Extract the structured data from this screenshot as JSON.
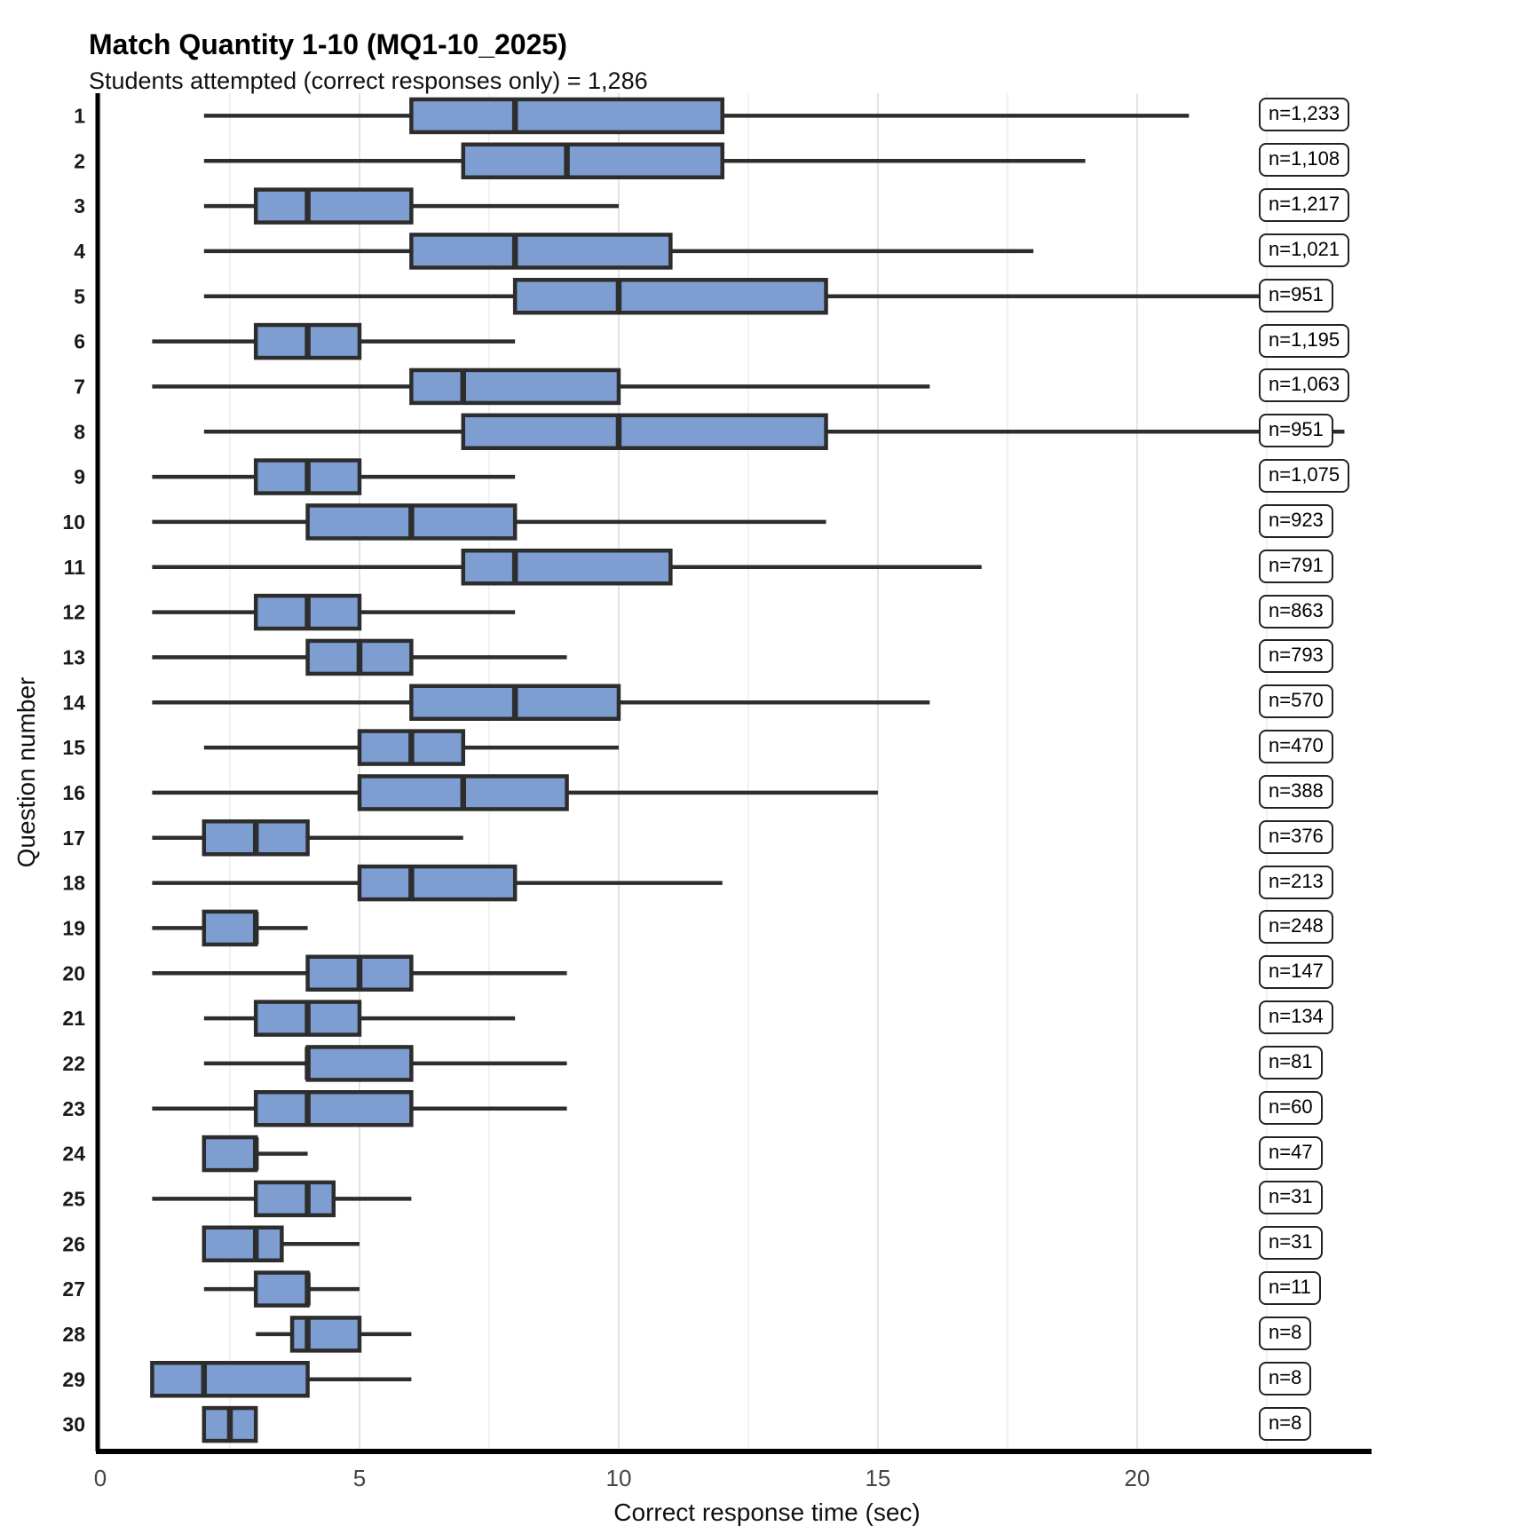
{
  "title": "Match Quantity 1-10 (MQ1-10_2025)",
  "subtitle": "Students attempted (correct responses only) = 1,286",
  "chart_data": {
    "type": "boxplot-horizontal",
    "title": "Match Quantity 1-10 (MQ1-10_2025)",
    "subtitle": "Students attempted (correct responses only) = 1,286",
    "xlabel": "Correct response time (sec)",
    "ylabel": "Question number",
    "xlim": [
      0,
      24.3
    ],
    "x_ticks": [
      0,
      5,
      10,
      15,
      20
    ],
    "x_minor_gridlines": [
      2.5,
      7.5,
      12.5,
      17.5,
      22.5
    ],
    "grid": "vertical-only",
    "legend": "none",
    "box_fill": "#7E9ED2",
    "box_stroke": "#2D2D2D",
    "rows": [
      {
        "question": "1",
        "n_label": "n=1,233",
        "min": 2,
        "q1": 6,
        "median": 8,
        "q3": 12,
        "max": 21
      },
      {
        "question": "2",
        "n_label": "n=1,108",
        "min": 2,
        "q1": 7,
        "median": 9,
        "q3": 12,
        "max": 19
      },
      {
        "question": "3",
        "n_label": "n=1,217",
        "min": 2,
        "q1": 3,
        "median": 4,
        "q3": 6,
        "max": 10
      },
      {
        "question": "4",
        "n_label": "n=1,021",
        "min": 2,
        "q1": 6,
        "median": 8,
        "q3": 11,
        "max": 18
      },
      {
        "question": "5",
        "n_label": "n=951",
        "min": 2,
        "q1": 8,
        "median": 10,
        "q3": 14,
        "max": 23
      },
      {
        "question": "6",
        "n_label": "n=1,195",
        "min": 1,
        "q1": 3,
        "median": 4,
        "q3": 5,
        "max": 8
      },
      {
        "question": "7",
        "n_label": "n=1,063",
        "min": 1,
        "q1": 6,
        "median": 7,
        "q3": 10,
        "max": 16
      },
      {
        "question": "8",
        "n_label": "n=951",
        "min": 2,
        "q1": 7,
        "median": 10,
        "q3": 14,
        "max": 24
      },
      {
        "question": "9",
        "n_label": "n=1,075",
        "min": 1,
        "q1": 3,
        "median": 4,
        "q3": 5,
        "max": 8
      },
      {
        "question": "10",
        "n_label": "n=923",
        "min": 1,
        "q1": 4,
        "median": 6,
        "q3": 8,
        "max": 14
      },
      {
        "question": "11",
        "n_label": "n=791",
        "min": 1,
        "q1": 7,
        "median": 8,
        "q3": 11,
        "max": 17
      },
      {
        "question": "12",
        "n_label": "n=863",
        "min": 1,
        "q1": 3,
        "median": 4,
        "q3": 5,
        "max": 8
      },
      {
        "question": "13",
        "n_label": "n=793",
        "min": 1,
        "q1": 4,
        "median": 5,
        "q3": 6,
        "max": 9
      },
      {
        "question": "14",
        "n_label": "n=570",
        "min": 1,
        "q1": 6,
        "median": 8,
        "q3": 10,
        "max": 16
      },
      {
        "question": "15",
        "n_label": "n=470",
        "min": 2,
        "q1": 5,
        "median": 6,
        "q3": 7,
        "max": 10
      },
      {
        "question": "16",
        "n_label": "n=388",
        "min": 1,
        "q1": 5,
        "median": 7,
        "q3": 9,
        "max": 15
      },
      {
        "question": "17",
        "n_label": "n=376",
        "min": 1,
        "q1": 2,
        "median": 3,
        "q3": 4,
        "max": 7
      },
      {
        "question": "18",
        "n_label": "n=213",
        "min": 1,
        "q1": 5,
        "median": 6,
        "q3": 8,
        "max": 12
      },
      {
        "question": "19",
        "n_label": "n=248",
        "min": 1,
        "q1": 2,
        "median": 3,
        "q3": 3,
        "max": 4
      },
      {
        "question": "20",
        "n_label": "n=147",
        "min": 1,
        "q1": 4,
        "median": 5,
        "q3": 6,
        "max": 9
      },
      {
        "question": "21",
        "n_label": "n=134",
        "min": 2,
        "q1": 3,
        "median": 4,
        "q3": 5,
        "max": 8
      },
      {
        "question": "22",
        "n_label": "n=81",
        "min": 2,
        "q1": 4,
        "median": 4,
        "q3": 6,
        "max": 9
      },
      {
        "question": "23",
        "n_label": "n=60",
        "min": 1,
        "q1": 3,
        "median": 4,
        "q3": 6,
        "max": 9
      },
      {
        "question": "24",
        "n_label": "n=47",
        "min": 2,
        "q1": 2,
        "median": 3,
        "q3": 3,
        "max": 4
      },
      {
        "question": "25",
        "n_label": "n=31",
        "min": 1,
        "q1": 3,
        "median": 4,
        "q3": 4.5,
        "max": 6
      },
      {
        "question": "26",
        "n_label": "n=31",
        "min": 2,
        "q1": 2,
        "median": 3,
        "q3": 3.5,
        "max": 5
      },
      {
        "question": "27",
        "n_label": "n=11",
        "min": 2,
        "q1": 3,
        "median": 4,
        "q3": 4,
        "max": 5
      },
      {
        "question": "28",
        "n_label": "n=8",
        "min": 3,
        "q1": 3.7,
        "median": 4,
        "q3": 5,
        "max": 6
      },
      {
        "question": "29",
        "n_label": "n=8",
        "min": 1,
        "q1": 1,
        "median": 2,
        "q3": 4,
        "max": 6
      },
      {
        "question": "30",
        "n_label": "n=8",
        "min": 2,
        "q1": 2,
        "median": 2.5,
        "q3": 3,
        "max": 3
      }
    ]
  }
}
